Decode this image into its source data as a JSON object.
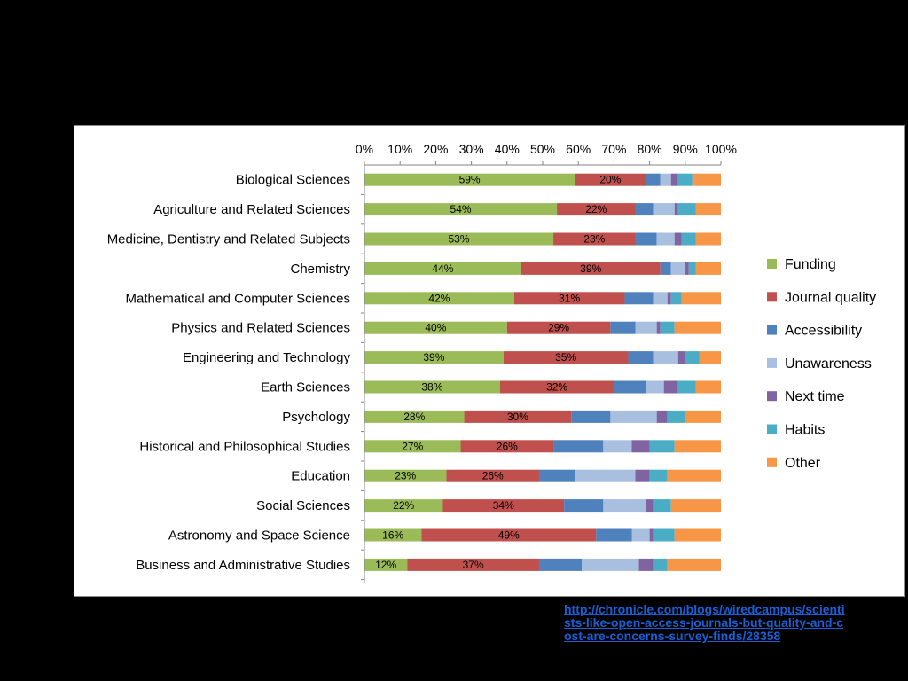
{
  "source": {
    "url": "http://chronicle.com/blogs/wiredcampus/scientists-like-open-access-journals-but-quality-and-cost-are-concerns-survey-finds/28358"
  },
  "chart_data": {
    "type": "bar",
    "orientation": "horizontal",
    "stacked": "percent",
    "title": "",
    "xlabel": "",
    "ylabel": "",
    "xlim": [
      0,
      100
    ],
    "x_ticks": [
      "0%",
      "10%",
      "20%",
      "30%",
      "40%",
      "50%",
      "60%",
      "70%",
      "80%",
      "90%",
      "100%"
    ],
    "x_axis_position": "top",
    "grid": false,
    "legend_position": "right",
    "categories": [
      "Biological Sciences",
      "Agriculture and Related Sciences",
      "Medicine, Dentistry and Related Subjects",
      "Chemistry",
      "Mathematical and Computer Sciences",
      "Physics and Related Sciences",
      "Engineering and Technology",
      "Earth Sciences",
      "Psychology",
      "Historical and Philosophical Studies",
      "Education",
      "Social Sciences",
      "Astronomy and Space Science",
      "Business and Administrative Studies"
    ],
    "series": [
      {
        "name": "Funding",
        "color": "#9bbb59",
        "values": [
          59,
          54,
          53,
          44,
          42,
          40,
          39,
          38,
          28,
          27,
          23,
          22,
          16,
          12
        ],
        "labels": [
          "59%",
          "54%",
          "53%",
          "44%",
          "42%",
          "40%",
          "39%",
          "38%",
          "28%",
          "27%",
          "23%",
          "22%",
          "16%",
          "12%"
        ]
      },
      {
        "name": "Journal quality",
        "color": "#c0504d",
        "values": [
          20,
          22,
          23,
          39,
          31,
          29,
          35,
          32,
          30,
          26,
          26,
          34,
          49,
          37
        ],
        "labels": [
          "20%",
          "22%",
          "23%",
          "39%",
          "31%",
          "29%",
          "35%",
          "32%",
          "30%",
          "26%",
          "26%",
          "34%",
          "49%",
          "37%"
        ]
      },
      {
        "name": "Accessibility",
        "color": "#4f81bd",
        "values": [
          4,
          5,
          6,
          3,
          8,
          7,
          7,
          9,
          11,
          14,
          10,
          11,
          10,
          12
        ]
      },
      {
        "name": "Unawareness",
        "color": "#a8bfe0",
        "values": [
          3,
          6,
          5,
          4,
          4,
          6,
          7,
          5,
          13,
          8,
          17,
          12,
          5,
          16
        ]
      },
      {
        "name": "Next time",
        "color": "#8064a2",
        "values": [
          2,
          1,
          2,
          1,
          1,
          1,
          2,
          4,
          3,
          5,
          4,
          2,
          1,
          4
        ]
      },
      {
        "name": "Habits",
        "color": "#4bacc6",
        "values": [
          4,
          5,
          4,
          2,
          3,
          4,
          4,
          5,
          5,
          7,
          5,
          5,
          6,
          4
        ]
      },
      {
        "name": "Other",
        "color": "#f79646",
        "values": [
          8,
          7,
          7,
          7,
          11,
          13,
          6,
          7,
          10,
          13,
          15,
          14,
          13,
          15
        ]
      }
    ]
  }
}
